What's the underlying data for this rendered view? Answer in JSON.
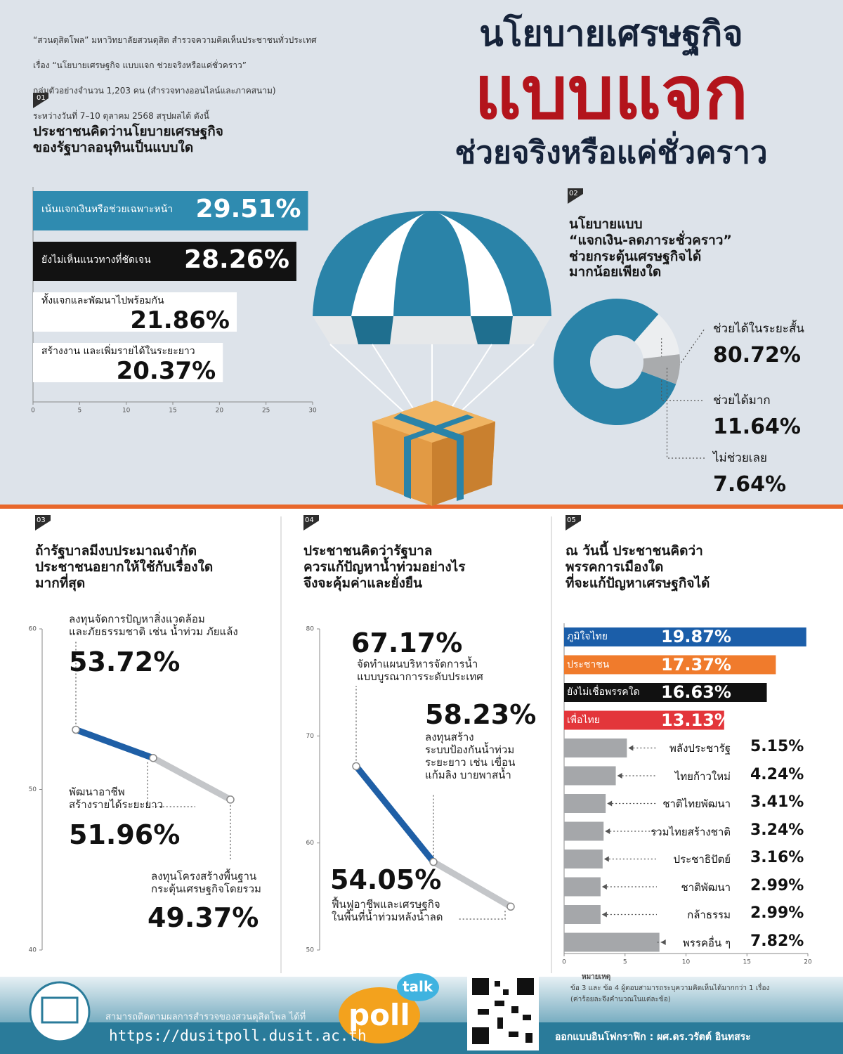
{
  "header": {
    "intro": [
      "“สวนดุสิตโพล” มหาวิทยาลัยสวนดุสิต สำรวจความคิดเห็นประชาชนทั่วประเทศ",
      "เรื่อง “นโยบายเศรษฐกิจ แบบแจก ช่วยจริงหรือแค่ชั่วคราว”",
      "กลุ่มตัวอย่างจำนวน 1,203 คน (สำรวจทางออนไลน์และภาคสนาม)",
      "ระหว่างวันที่ 7–10 ตุลาคม 2568 สรุปผลได้ ดังนี้"
    ],
    "title_line1": "นโยบายเศรษฐกิจ",
    "title_line2": "แบบแจก",
    "title_line3": "ช่วยจริงหรือแค่ชั่วคราว"
  },
  "chart_data": [
    {
      "type": "bar",
      "number": "01",
      "title": "ประชาชนคิดว่านโยบายเศรษฐกิจ\nของรัฐบาลอนุทินเป็นแบบใด",
      "categories": [
        "เน้นแจกเงินหรือช่วยเฉพาะหน้า",
        "ยังไม่เห็นแนวทางที่ชัดเจน",
        "ทั้งแจกและพัฒนาไปพร้อมกัน",
        "สร้างงาน และเพิ่มรายได้ในระยะยาว"
      ],
      "values": [
        29.51,
        28.26,
        21.86,
        20.37
      ],
      "value_labels": [
        "29.51%",
        "28.26%",
        "21.86%",
        "20.37%"
      ],
      "colors": [
        "#2f8bb0",
        "#121212",
        "#ffffff",
        "#ffffff"
      ],
      "xlim": [
        0,
        30
      ],
      "xticks": [
        0,
        5,
        10,
        15,
        20,
        25,
        30
      ]
    },
    {
      "type": "pie",
      "number": "02",
      "title": "นโยบายแบบ\n“แจกเงิน-ลดภาระชั่วคราว”\nช่วยกระตุ้นเศรษฐกิจได้\nมากน้อยเพียงใด",
      "categories": [
        "ช่วยได้ในระยะสั้น",
        "ช่วยได้มาก",
        "ไม่ช่วยเลย"
      ],
      "values": [
        80.72,
        11.64,
        7.64
      ],
      "value_labels": [
        "80.72%",
        "11.64%",
        "7.64%"
      ],
      "colors": [
        "#2a83a8",
        "#eceef0",
        "#a9abad"
      ]
    },
    {
      "type": "line",
      "number": "03",
      "title": "ถ้ารัฐบาลมีงบประมาณจำกัด\nประชาชนอยากให้ใช้กับเรื่องใด\nมากที่สุด",
      "categories": [
        "ลงทุนจัดการปัญหาสิ่งแวดล้อม\nและภัยธรรมชาติ เช่น น้ำท่วม ภัยแล้ง",
        "พัฒนาอาชีพ\nสร้างรายได้ระยะยาว",
        "ลงทุนโครงสร้างพื้นฐาน\nกระตุ้นเศรษฐกิจโดยรวม"
      ],
      "values": [
        53.72,
        51.96,
        49.37
      ],
      "value_labels": [
        "53.72%",
        "51.96%",
        "49.37%"
      ],
      "colors": [
        "#1f5fa6",
        "#c4c6c9"
      ],
      "ylim": [
        40,
        60
      ],
      "yticks": [
        40,
        50,
        60
      ]
    },
    {
      "type": "line",
      "number": "04",
      "title": "ประชาชนคิดว่ารัฐบาล\nควรแก้ปัญหาน้ำท่วมอย่างไร\nจึงจะคุ้มค่าและยั่งยืน",
      "categories": [
        "จัดทำแผนบริหารจัดการน้ำ\nแบบบูรณาการระดับประเทศ",
        "ลงทุนสร้าง\nระบบป้องกันน้ำท่วม\nระยะยาว เช่น เขื่อน\nแก้มลิง บายพาสน้ำ",
        "ฟื้นฟูอาชีพและเศรษฐกิจ\nในพื้นที่น้ำท่วมหลังน้ำลด"
      ],
      "values": [
        67.17,
        58.23,
        54.05
      ],
      "value_labels": [
        "67.17%",
        "58.23%",
        "54.05%"
      ],
      "colors": [
        "#1f5fa6",
        "#c4c6c9"
      ],
      "ylim": [
        50,
        80
      ],
      "yticks": [
        50,
        60,
        70,
        80
      ]
    },
    {
      "type": "bar",
      "number": "05",
      "title": "ณ วันนี้ ประชาชนคิดว่า\nพรรคการเมืองใด\nที่จะแก้ปัญหาเศรษฐกิจได้",
      "categories": [
        "ภูมิใจไทย",
        "ประชาชน",
        "ยังไม่เชื่อพรรคใด",
        "เพื่อไทย",
        "พลังประชารัฐ",
        "ไทยก้าวใหม่",
        "ชาติไทยพัฒนา",
        "รวมไทยสร้างชาติ",
        "ประชาธิปัตย์",
        "ชาติพัฒนา",
        "กล้าธรรม",
        "พรรคอื่น ๆ"
      ],
      "values": [
        19.87,
        17.37,
        16.63,
        13.13,
        5.15,
        4.24,
        3.41,
        3.24,
        3.16,
        2.99,
        2.99,
        7.82
      ],
      "value_labels": [
        "19.87%",
        "17.37%",
        "16.63%",
        "13.13%",
        "5.15%",
        "4.24%",
        "3.41%",
        "3.24%",
        "3.16%",
        "2.99%",
        "2.99%",
        "7.82%"
      ],
      "colors": [
        "#1b5ea9",
        "#f07b2c",
        "#111111",
        "#e3363b",
        "#a5a7aa",
        "#a5a7aa",
        "#a5a7aa",
        "#a5a7aa",
        "#a5a7aa",
        "#a5a7aa",
        "#a5a7aa",
        "#a5a7aa"
      ],
      "xlim": [
        0,
        20
      ],
      "xticks": [
        0,
        5,
        10,
        15,
        20
      ],
      "note": [
        "หมายเหตุ",
        "ข้อ 3 และ ข้อ 4 ผู้ตอบสามารถระบุความคิดเห็นได้มากกว่า 1 เรื่อง",
        "(ค่าร้อยละจึงคำนวณในแต่ละข้อ)"
      ]
    }
  ],
  "footer": {
    "follow_text": "สามารถติดตามผลการสำรวจของสวนดุสิตโพล ได้ที่",
    "url": "https://dusitpoll.dusit.ac.th",
    "logo_poll": "poll",
    "logo_talk": "talk",
    "designer": "ออกแบบอินโฟกราฟิก : ผศ.ดร.วรัตต์ อินทสระ"
  }
}
